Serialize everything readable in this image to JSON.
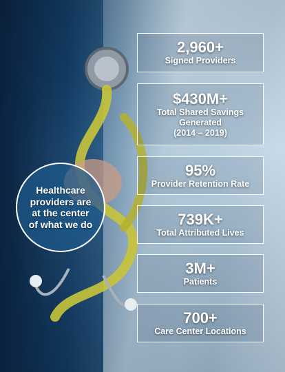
{
  "circle": {
    "text": "Healthcare providers are at the center of what we do"
  },
  "stats": [
    {
      "value": "2,960+",
      "label": "Signed Providers"
    },
    {
      "value": "$430M+",
      "label": "Total Shared Savings Generated",
      "sublabel": "(2014 – 2019)"
    },
    {
      "value": "95%",
      "label": "Provider Retention Rate"
    },
    {
      "value": "739K+",
      "label": "Total Attributed Lives"
    },
    {
      "value": "3M+",
      "label": "Patients"
    },
    {
      "value": "700+",
      "label": "Care Center Locations"
    }
  ],
  "colors": {
    "accent_circle": "#1e5a8c",
    "box_border": "#ffffff",
    "stethoscope_tube": "#c8c43a"
  }
}
